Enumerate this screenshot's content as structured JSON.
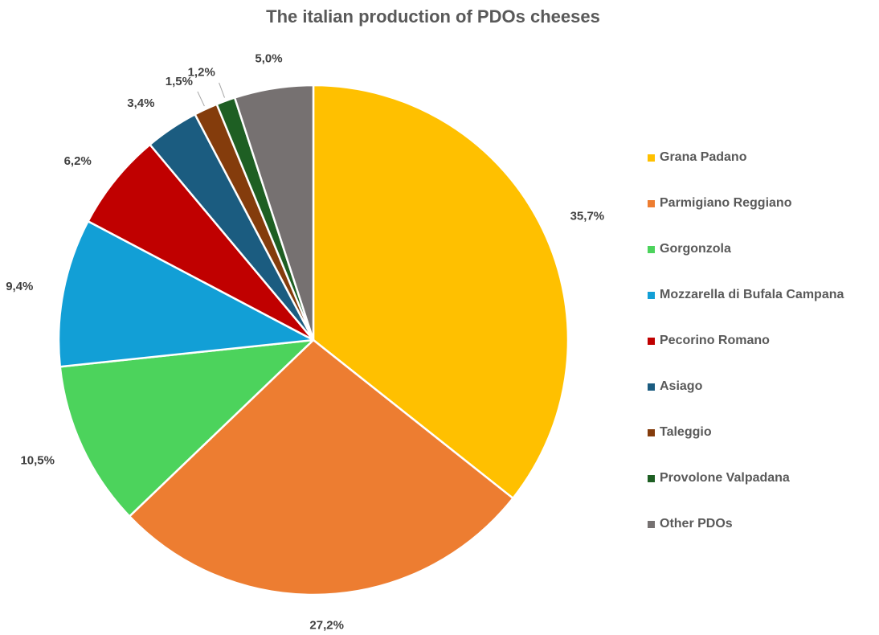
{
  "chart_data": {
    "type": "pie",
    "title": "The italian production of PDOs cheeses",
    "legend_position": "right",
    "slices": [
      {
        "label": "Grana Padano",
        "value": 35.7,
        "display": "35,7%",
        "color": "#FFC000"
      },
      {
        "label": "Parmigiano Reggiano",
        "value": 27.2,
        "display": "27,2%",
        "color": "#ED7D31"
      },
      {
        "label": "Gorgonzola",
        "value": 10.5,
        "display": "10,5%",
        "color": "#4CD35C"
      },
      {
        "label": "Mozzarella di Bufala Campana",
        "value": 9.4,
        "display": "9,4%",
        "color": "#129FD6"
      },
      {
        "label": "Pecorino Romano",
        "value": 6.2,
        "display": "6,2%",
        "color": "#C00000"
      },
      {
        "label": "Asiago",
        "value": 3.4,
        "display": "3,4%",
        "color": "#1B5C80"
      },
      {
        "label": "Taleggio",
        "value": 1.5,
        "display": "1,5%",
        "color": "#843C0C"
      },
      {
        "label": "Provolone Valpadana",
        "value": 1.2,
        "display": "1,2%",
        "color": "#1E5F23"
      },
      {
        "label": "Other PDOs",
        "value": 5.0,
        "display": "5,0%",
        "color": "#767171"
      }
    ]
  }
}
